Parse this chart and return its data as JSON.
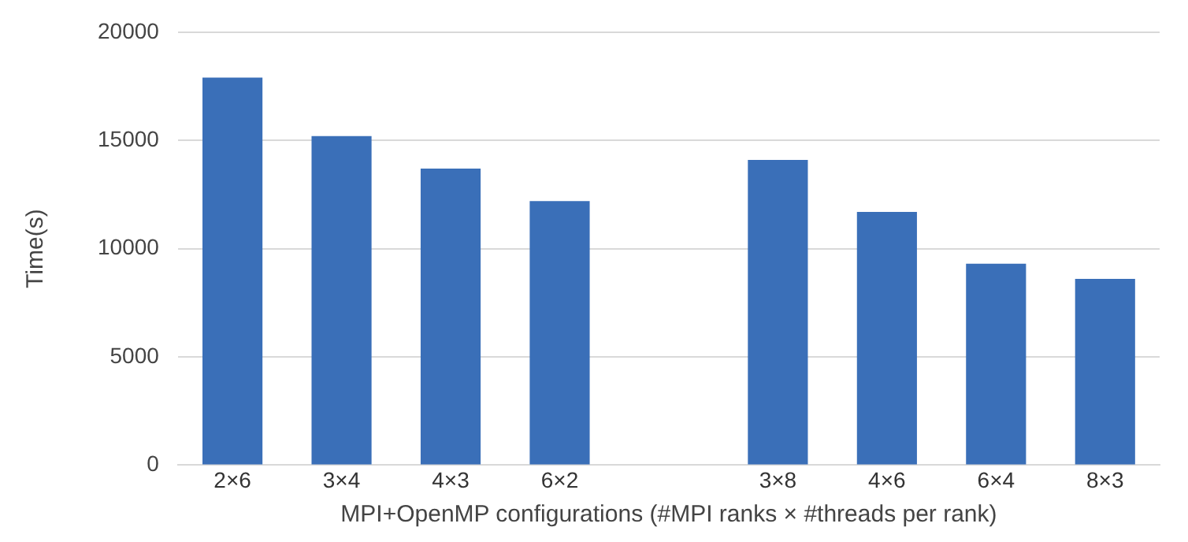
{
  "chart_data": {
    "type": "bar",
    "xlabel": "MPI+OpenMP configurations (#MPI ranks × #threads per rank)",
    "ylabel": "Time(s)",
    "categories": [
      "2×6",
      "3×4",
      "4×3",
      "6×2",
      null,
      "3×8",
      "4×6",
      "6×4",
      "8×3"
    ],
    "values": [
      17900,
      15200,
      13700,
      12200,
      null,
      14100,
      11700,
      9300,
      8600
    ],
    "color": "#3a6fb8",
    "ylim": [
      0,
      20000
    ],
    "yticks": [
      0,
      5000,
      10000,
      15000,
      20000
    ],
    "grid": "y",
    "legend": false
  }
}
